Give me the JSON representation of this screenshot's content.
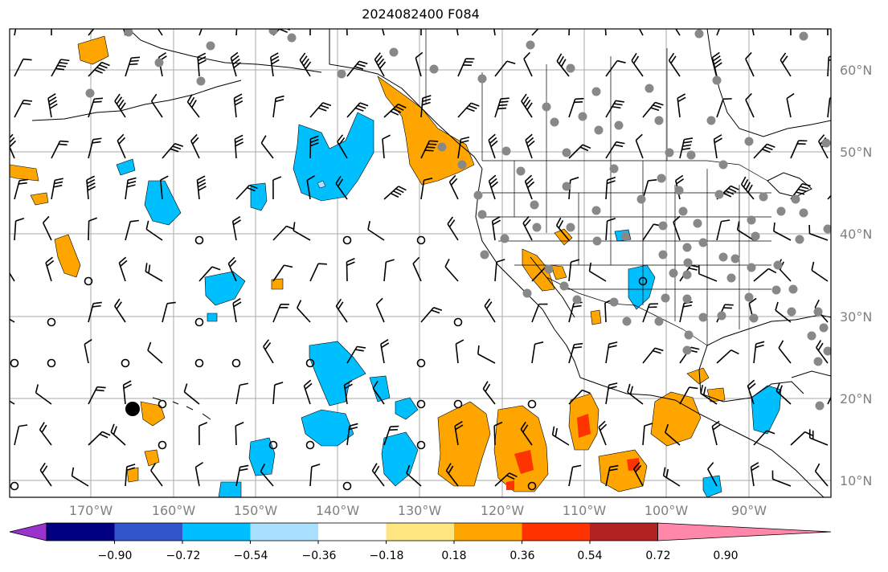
{
  "title": "2024082400 F084",
  "lat_labels": [
    "60°N",
    "50°N",
    "40°N",
    "30°N",
    "20°N",
    "10°N"
  ],
  "lon_labels": [
    "170°W",
    "160°W",
    "150°W",
    "140°W",
    "130°W",
    "120°W",
    "110°W",
    "100°W",
    "90°W"
  ],
  "colorbar": {
    "tick_labels": [
      "−0.90",
      "−0.72",
      "−0.54",
      "−0.36",
      "−0.18",
      "0.18",
      "0.36",
      "0.54",
      "0.72",
      "0.90"
    ],
    "colors": [
      "#9933cc",
      "#000080",
      "#3355cc",
      "#00bfff",
      "#aae0ff",
      "#ffffff",
      "#ffe680",
      "#ffa500",
      "#ff3300",
      "#b22222",
      "#ff88aa"
    ]
  }
}
